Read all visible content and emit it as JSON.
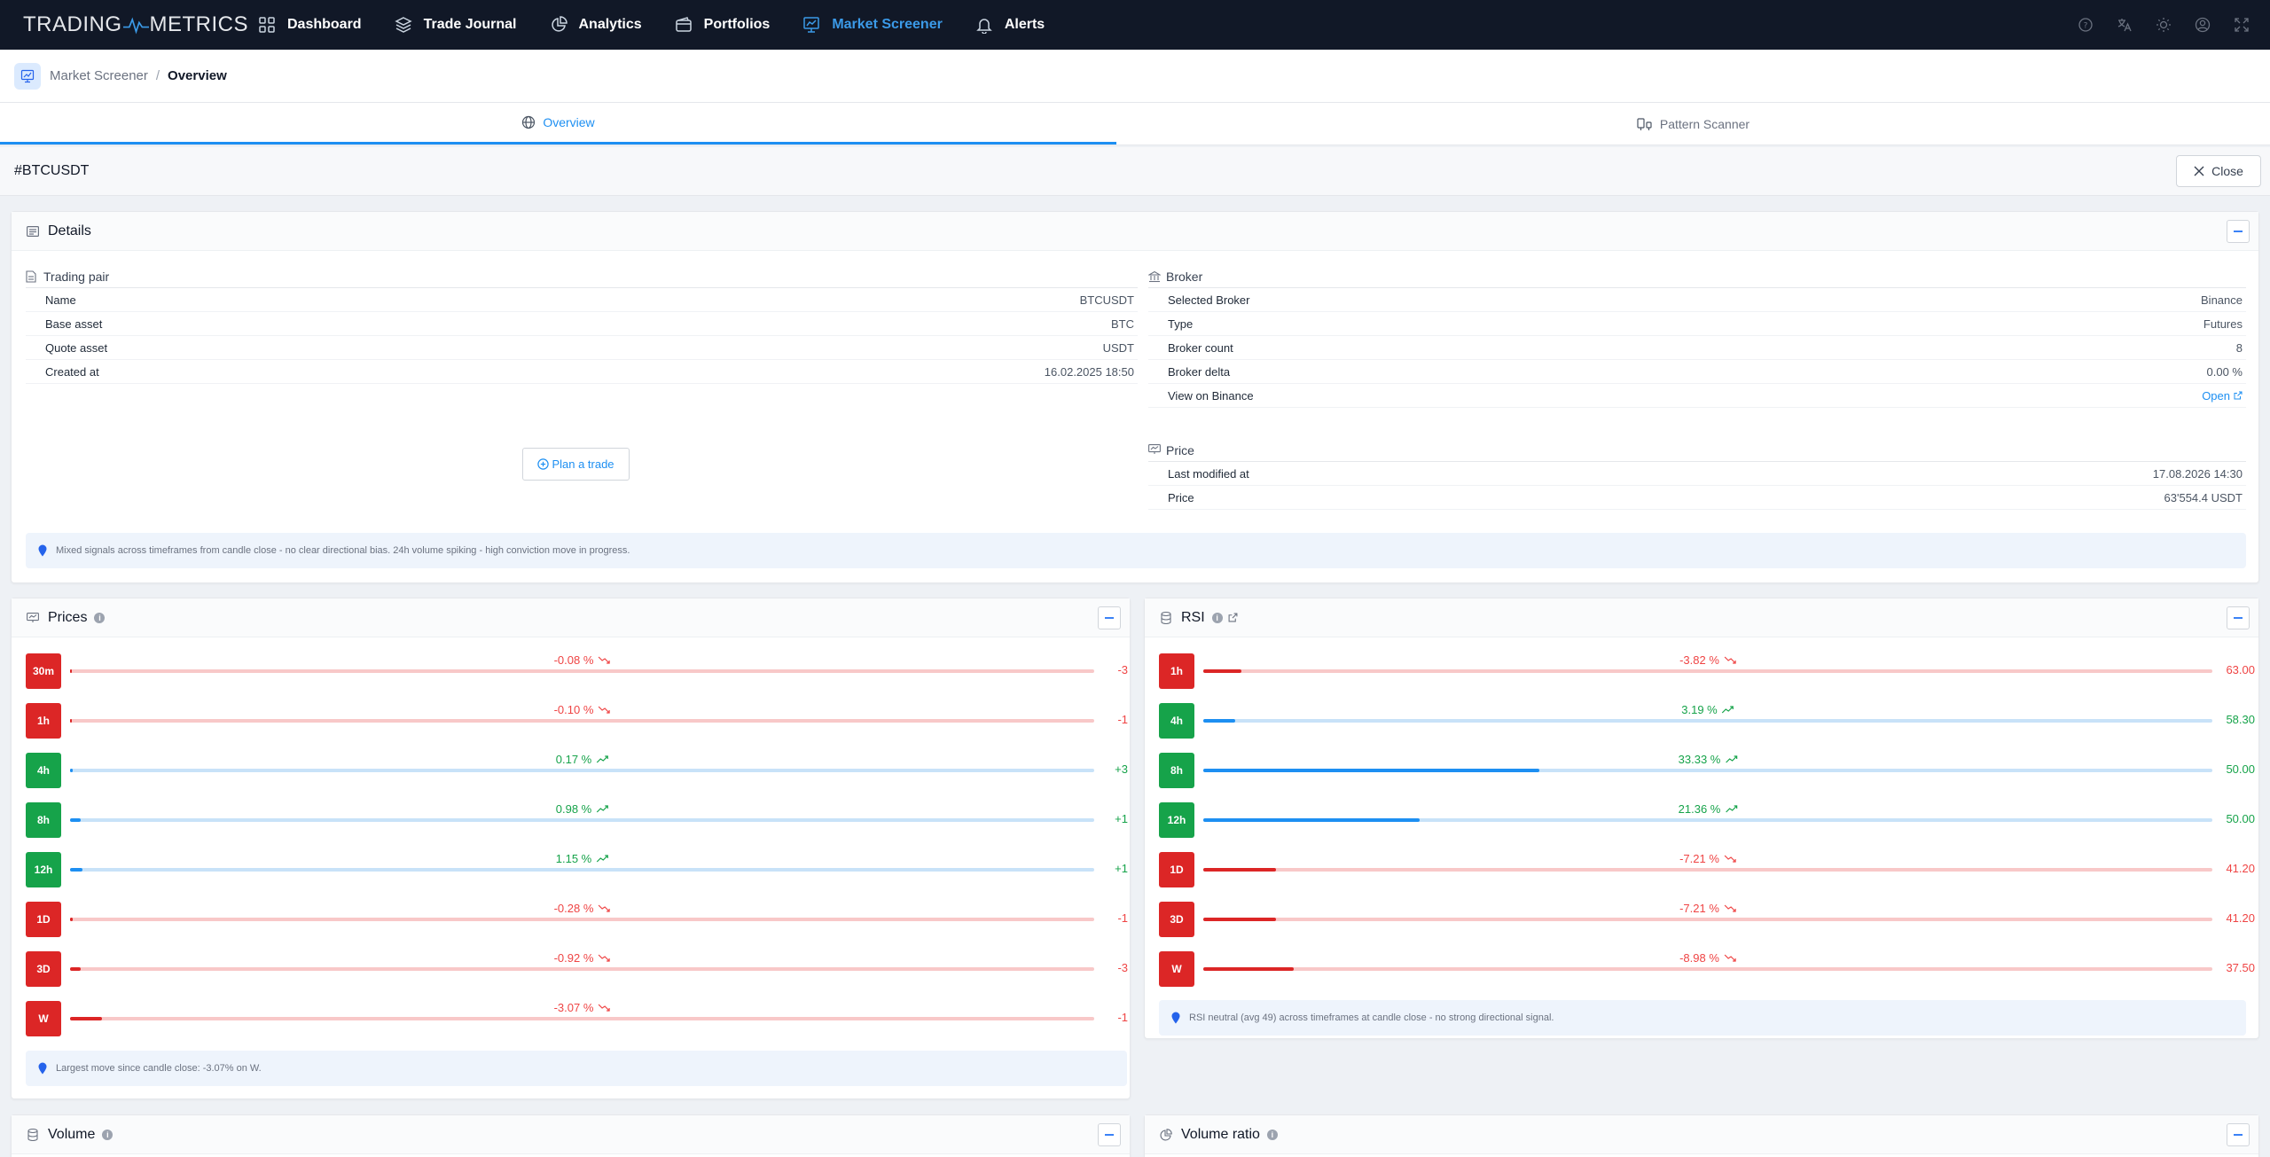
{
  "app": {
    "logo_left": "TRADING",
    "logo_right": "METRICS"
  },
  "nav": [
    {
      "label": "Dashboard",
      "icon": "grid-icon"
    },
    {
      "label": "Trade Journal",
      "icon": "layers-icon"
    },
    {
      "label": "Analytics",
      "icon": "pie-chart-icon"
    },
    {
      "label": "Portfolios",
      "icon": "wallet-icon"
    },
    {
      "label": "Market Screener",
      "icon": "monitor-chart-icon",
      "active": true
    },
    {
      "label": "Alerts",
      "icon": "bell-icon"
    }
  ],
  "topbar_icons": [
    "help-icon",
    "translate-icon",
    "theme-sun-icon",
    "account-icon",
    "fullscreen-icon"
  ],
  "breadcrumb": {
    "parent": "Market Screener",
    "separator": "/",
    "current": "Overview"
  },
  "tabs": [
    {
      "label": "Overview",
      "active": true
    },
    {
      "label": "Pattern Scanner",
      "active": false
    }
  ],
  "symbol": {
    "title": "#BTCUSDT",
    "close_label": "Close"
  },
  "details": {
    "title": "Details",
    "trading_pair": {
      "title": "Trading pair",
      "rows": [
        {
          "key": "Name",
          "value": "BTCUSDT"
        },
        {
          "key": "Base asset",
          "value": "BTC"
        },
        {
          "key": "Quote asset",
          "value": "USDT"
        },
        {
          "key": "Created at",
          "value": "16.02.2025 18:50"
        }
      ]
    },
    "broker": {
      "title": "Broker",
      "rows": [
        {
          "key": "Selected Broker",
          "value": "Binance"
        },
        {
          "key": "Type",
          "value": "Futures"
        },
        {
          "key": "Broker count",
          "value": "8"
        },
        {
          "key": "Broker delta",
          "value": "0.00 %"
        },
        {
          "key": "View on Binance",
          "value": "Open"
        }
      ]
    },
    "price": {
      "title": "Price",
      "rows": [
        {
          "key": "Last modified at",
          "value": "17.08.2026 14:30"
        },
        {
          "key": "Price",
          "value": "63'554.4 USDT"
        }
      ]
    },
    "plan_button": "Plan a trade",
    "hint": "Mixed signals across timeframes from candle close - no clear directional bias. 24h volume spiking - high conviction move in progress."
  },
  "prices": {
    "title": "Prices",
    "rows": [
      {
        "tf": "30m",
        "pct": "-0.08 %",
        "dir": "neg",
        "fill": 0,
        "val": "-3"
      },
      {
        "tf": "1h",
        "pct": "-0.10 %",
        "dir": "neg",
        "fill": 0,
        "val": "-1"
      },
      {
        "tf": "4h",
        "pct": "0.17 %",
        "dir": "pos",
        "fill": 0.3,
        "val": "+3"
      },
      {
        "tf": "8h",
        "pct": "0.98 %",
        "dir": "pos",
        "fill": 1.0,
        "val": "+1"
      },
      {
        "tf": "12h",
        "pct": "1.15 %",
        "dir": "pos",
        "fill": 1.2,
        "val": "+1"
      },
      {
        "tf": "1D",
        "pct": "-0.28 %",
        "dir": "neg",
        "fill": 0.3,
        "val": "-1"
      },
      {
        "tf": "3D",
        "pct": "-0.92 %",
        "dir": "neg",
        "fill": 1.0,
        "val": "-3"
      },
      {
        "tf": "W",
        "pct": "-3.07 %",
        "dir": "neg",
        "fill": 3.1,
        "val": "-1"
      }
    ],
    "hint": "Largest move since candle close: -3.07% on W."
  },
  "rsi": {
    "title": "RSI",
    "rows": [
      {
        "tf": "1h",
        "pct": "-3.82 %",
        "dir": "neg",
        "fill": 3.8,
        "val": "63.00"
      },
      {
        "tf": "4h",
        "pct": "3.19 %",
        "dir": "pos",
        "fill": 3.2,
        "val": "58.30"
      },
      {
        "tf": "8h",
        "pct": "33.33 %",
        "dir": "pos",
        "fill": 33.3,
        "val": "50.00"
      },
      {
        "tf": "12h",
        "pct": "21.36 %",
        "dir": "pos",
        "fill": 21.4,
        "val": "50.00"
      },
      {
        "tf": "1D",
        "pct": "-7.21 %",
        "dir": "neg",
        "fill": 7.2,
        "val": "41.20"
      },
      {
        "tf": "3D",
        "pct": "-7.21 %",
        "dir": "neg",
        "fill": 7.2,
        "val": "41.20"
      },
      {
        "tf": "W",
        "pct": "-8.98 %",
        "dir": "neg",
        "fill": 9.0,
        "val": "37.50"
      }
    ],
    "hint": "RSI neutral (avg 49) across timeframes at candle close - no strong directional signal."
  },
  "volume": {
    "title": "Volume"
  },
  "volume_ratio": {
    "title": "Volume ratio"
  },
  "colors": {
    "topbar": "#111827",
    "accent": "#1d8ff2",
    "negative": "#dc2626",
    "positive": "#16a34a"
  }
}
